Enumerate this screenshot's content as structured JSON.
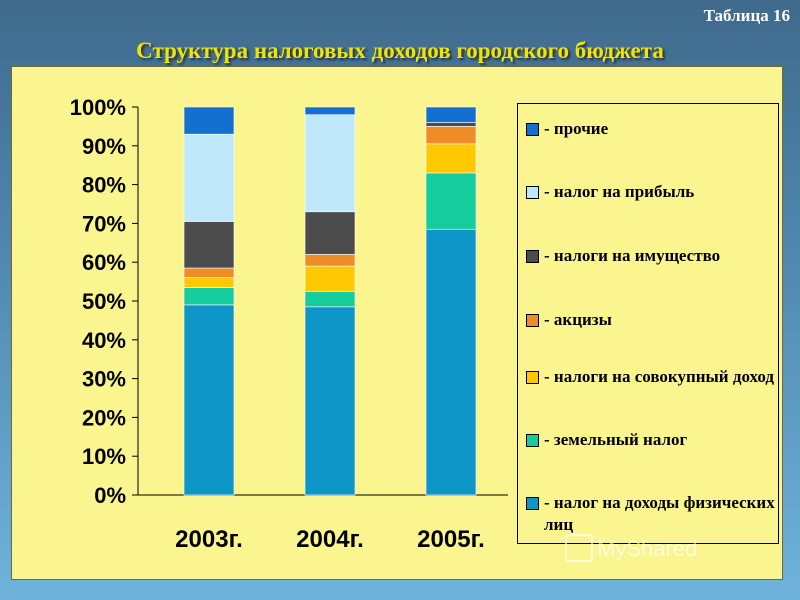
{
  "header": {
    "table_label": "Таблица 16",
    "title": "Структура налоговых доходов городского бюджета"
  },
  "watermark": {
    "text": "MyShared"
  },
  "chart_data": {
    "type": "bar",
    "stacked": true,
    "categories": [
      "2003г.",
      "2004г.",
      "2005г."
    ],
    "ylim": [
      0,
      100
    ],
    "yticks": [
      "0%",
      "10%",
      "20%",
      "30%",
      "40%",
      "50%",
      "60%",
      "70%",
      "80%",
      "90%",
      "100%"
    ],
    "grid": false,
    "legend_position": "right",
    "series": [
      {
        "name": "- налог на доходы физических лиц",
        "color": "#0e96c8",
        "values": [
          49,
          48.5,
          68.5
        ]
      },
      {
        "name": "- земельный налог",
        "color": "#14cc9c",
        "values": [
          4.5,
          4,
          14.5
        ]
      },
      {
        "name": "- налоги на совокупный доход",
        "color": "#ffc800",
        "values": [
          2.5,
          6.5,
          7.5
        ]
      },
      {
        "name": "- акцизы",
        "color": "#ee8c28",
        "values": [
          2.5,
          3,
          4.5
        ]
      },
      {
        "name": "- налоги на имущество",
        "color": "#4c4c4c",
        "values": [
          12,
          11,
          1
        ]
      },
      {
        "name": "- налог на прибыль",
        "color": "#bfe8fa",
        "values": [
          22.5,
          25,
          0
        ]
      },
      {
        "name": "- прочие",
        "color": "#1470d0",
        "values": [
          7,
          2,
          4
        ]
      }
    ],
    "legend_order": [
      6,
      5,
      4,
      3,
      2,
      1,
      0
    ]
  }
}
